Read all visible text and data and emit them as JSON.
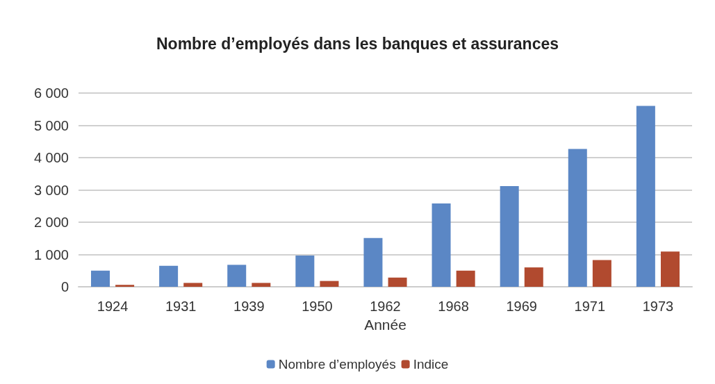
{
  "chart_data": {
    "type": "bar",
    "title": "Nombre d’employés dans les banques et assurances",
    "xlabel": "Année",
    "categories": [
      "1924",
      "1931",
      "1939",
      "1950",
      "1962",
      "1968",
      "1969",
      "1971",
      "1973"
    ],
    "series": [
      {
        "name": "Nombre d’employés",
        "color": "#5b87c5",
        "values": [
          500,
          650,
          680,
          970,
          1510,
          2580,
          3120,
          4270,
          5600
        ]
      },
      {
        "name": "Indice",
        "color": "#b14a2f",
        "values": [
          60,
          120,
          120,
          180,
          285,
          500,
          600,
          830,
          1090
        ]
      }
    ],
    "ylim": [
      0,
      6000
    ],
    "yticks": [
      0,
      {
        "value": 1000,
        "label": "1 000"
      },
      {
        "value": 2000,
        "label": "2 000"
      },
      {
        "value": 3000,
        "label": "3 000"
      },
      {
        "value": 4000,
        "label": "4 000"
      },
      {
        "value": 5000,
        "label": "5 000"
      },
      {
        "value": 6000,
        "label": "6 000"
      }
    ],
    "grid": "y",
    "legend": "bottom"
  }
}
